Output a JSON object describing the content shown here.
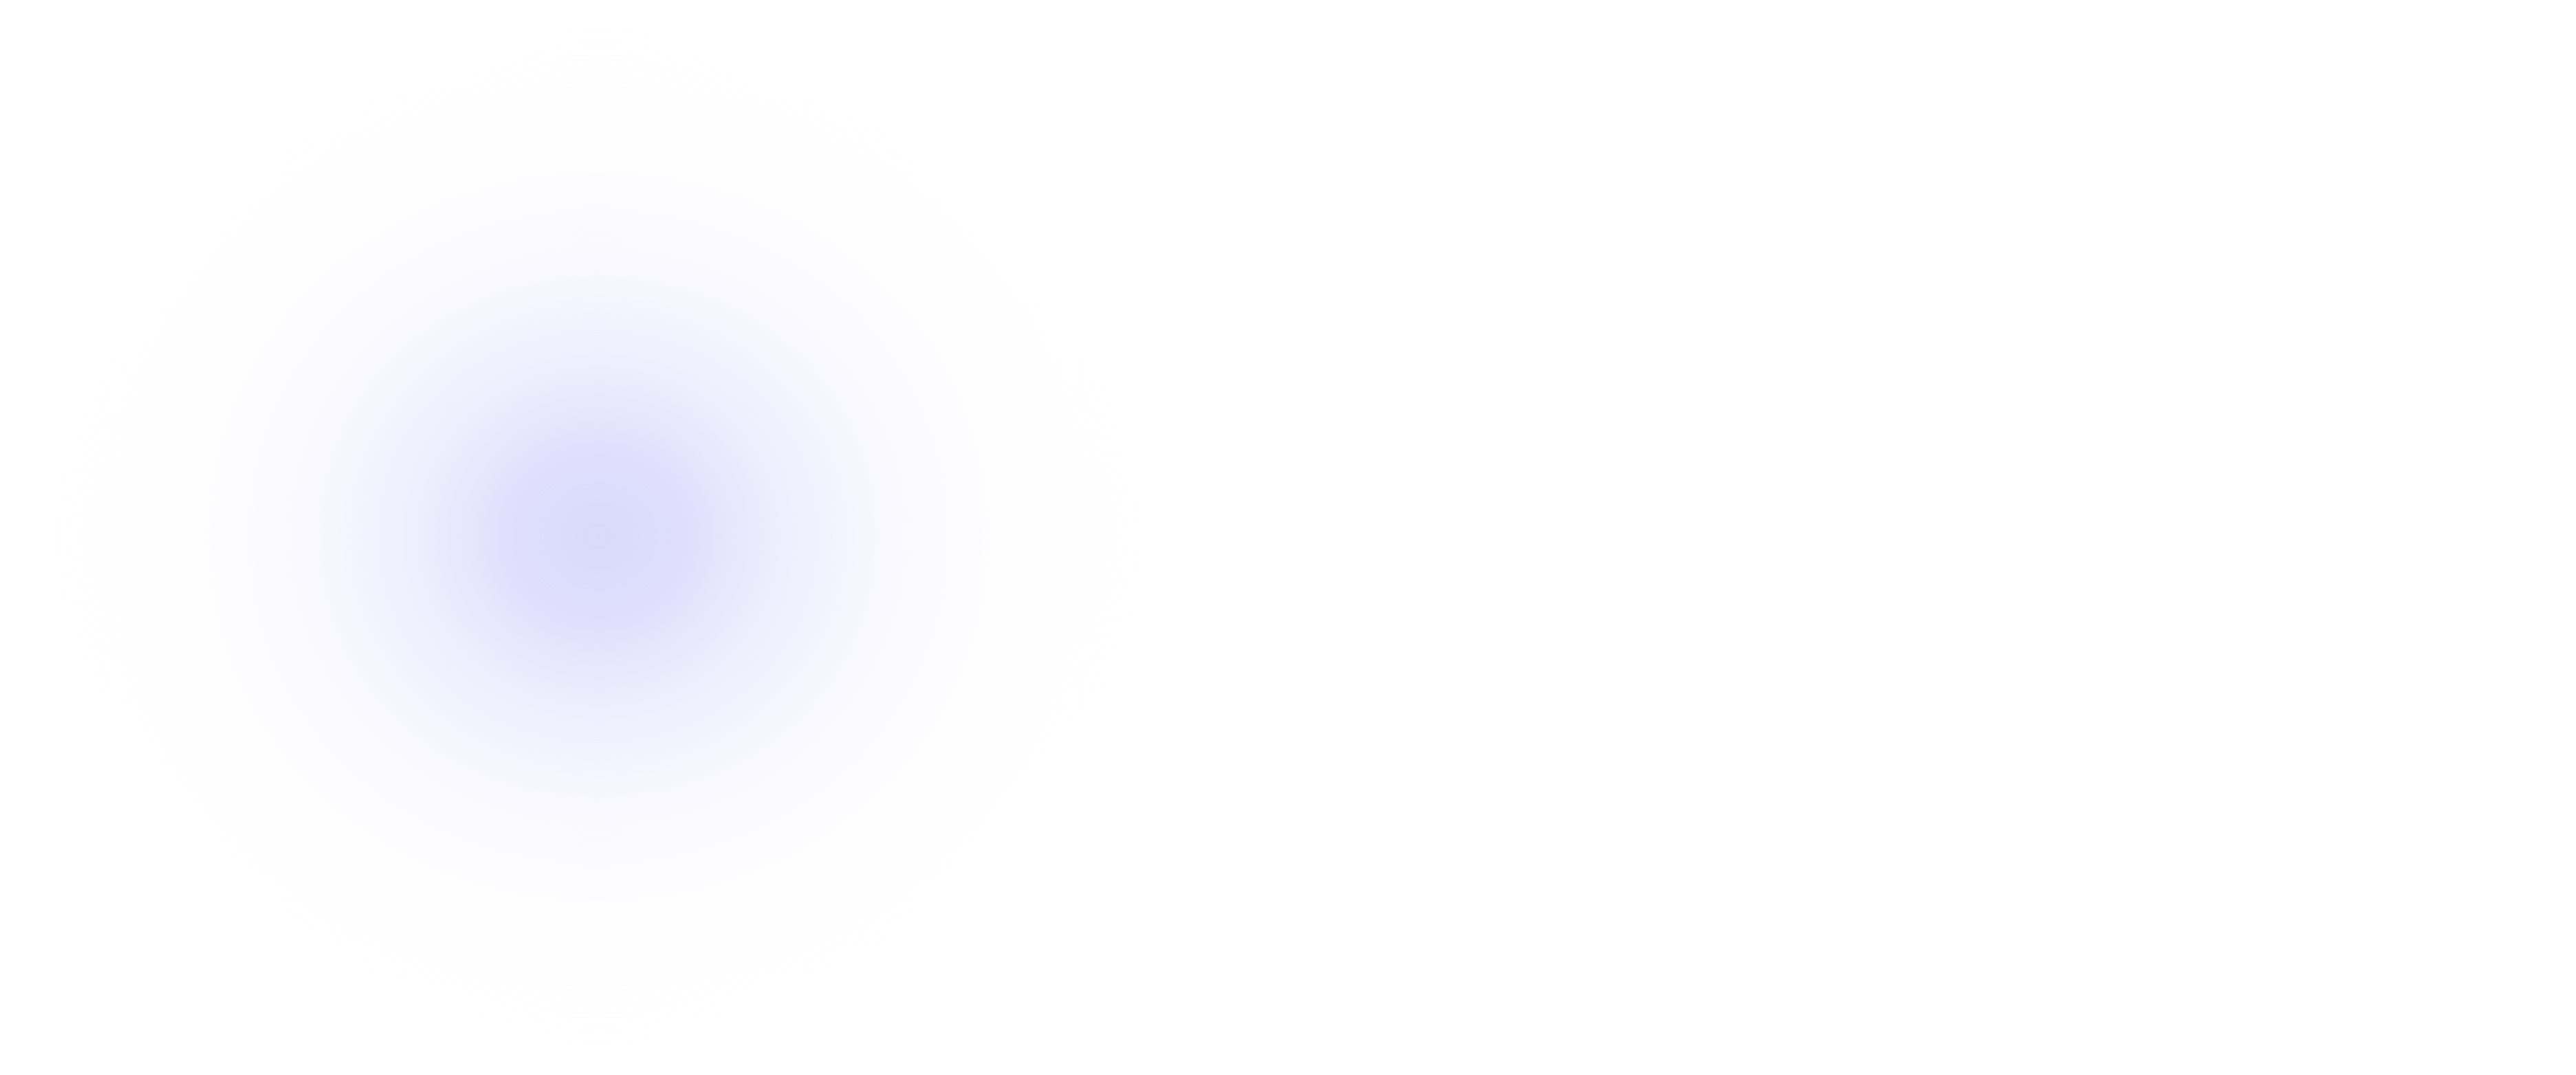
{
  "background": {
    "base_color": "#ffffff",
    "glow_color": "#d6d6fc"
  }
}
